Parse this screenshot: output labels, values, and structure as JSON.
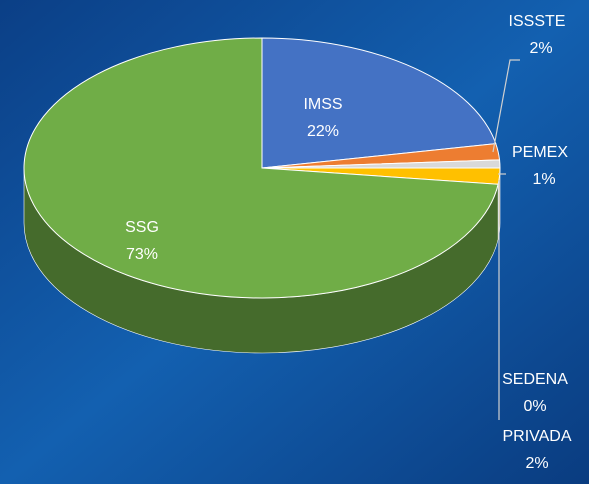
{
  "chart_data": {
    "type": "pie3d",
    "categories": [
      "IMSS",
      "ISSSTE",
      "PEMEX",
      "SEDENA",
      "PRIVADA",
      "SSG"
    ],
    "values": [
      22,
      2,
      1,
      0,
      2,
      73
    ],
    "value_labels": [
      "22%",
      "2%",
      "1%",
      "0%",
      "2%",
      "73%"
    ],
    "colors": [
      "#4472c4",
      "#ed7d31",
      "#d9d9d9",
      "#a5a5a5",
      "#ffc000",
      "#70ad47"
    ]
  }
}
